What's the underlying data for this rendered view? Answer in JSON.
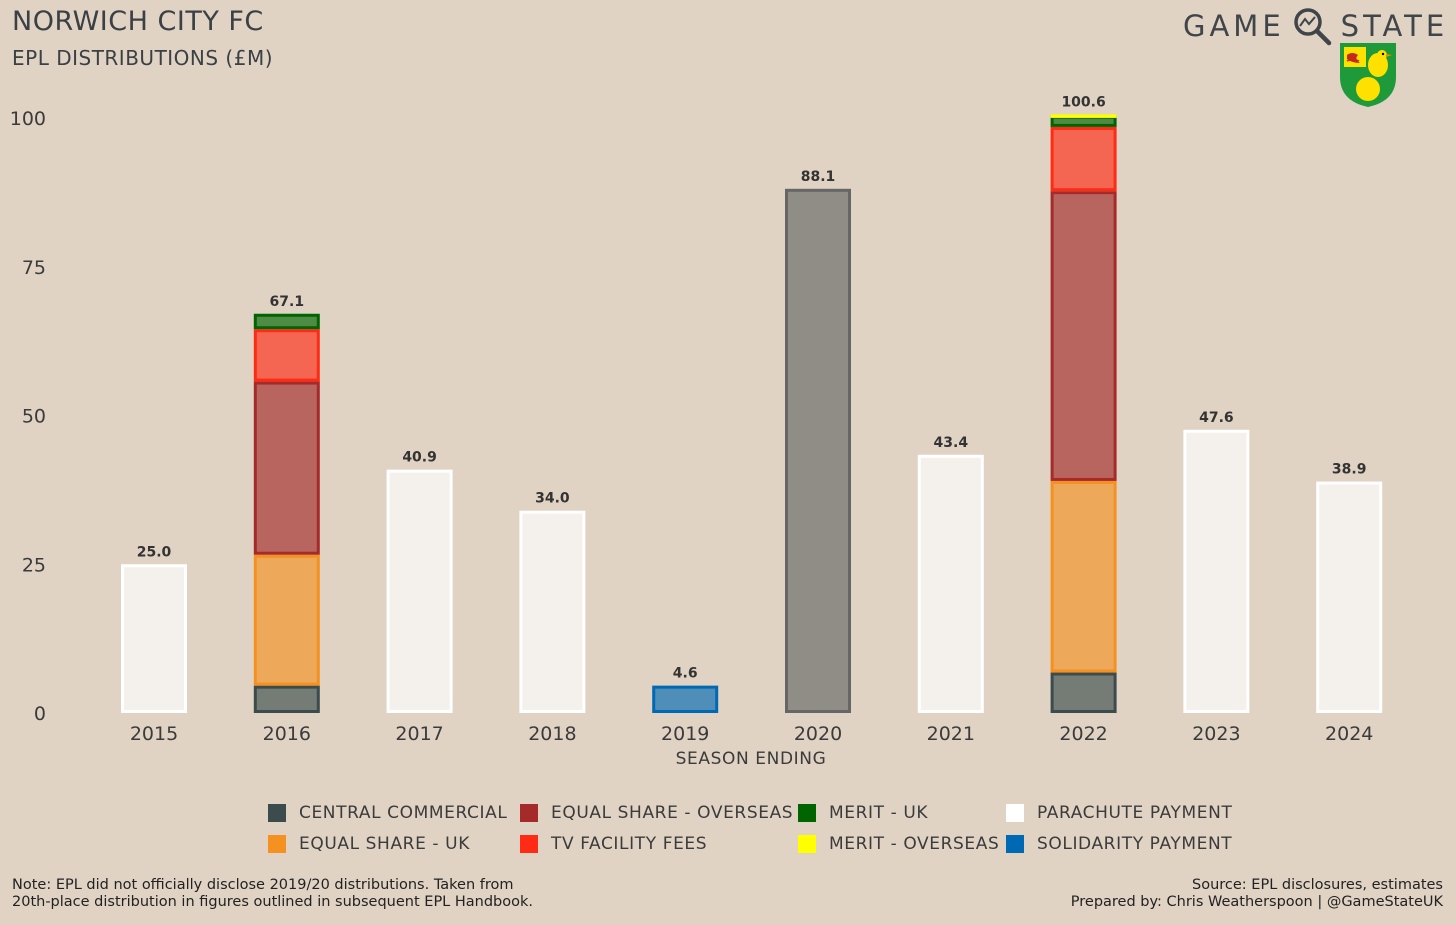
{
  "title": "NORWICH CITY FC",
  "subtitle": "EPL DISTRIBUTIONS (£M)",
  "brand": {
    "left_word": "GAME",
    "right_word": "STATE",
    "icon": "magnifier-icon",
    "crest": "norwich-canary-crest-icon"
  },
  "note": [
    "Note: EPL did not officially disclose 2019/20 distributions. Taken from",
    "20th-place distribution in figures outlined in subsequent EPL Handbook."
  ],
  "source": [
    "Source: EPL disclosures, estimates",
    "Prepared by: Chris Weatherspoon | @GameStateUK"
  ],
  "chart_data": {
    "type": "bar",
    "stacked": true,
    "xlabel": "SEASON ENDING",
    "ylabel": "",
    "ylim": [
      0,
      100
    ],
    "yticks": [
      0,
      25,
      50,
      75,
      100
    ],
    "grid": false,
    "legend_position": "bottom",
    "categories": [
      "2015",
      "2016",
      "2017",
      "2018",
      "2019",
      "2020",
      "2021",
      "2022",
      "2023",
      "2024"
    ],
    "totals": [
      "25.0",
      "67.1",
      "40.9",
      "34.0",
      "4.6",
      "88.1",
      "43.4",
      "100.6",
      "47.6",
      "38.9"
    ],
    "series": [
      {
        "name": "CENTRAL COMMERCIAL",
        "color": "#3c4b4b",
        "values": [
          0,
          4.6,
          0,
          0,
          0,
          0,
          0,
          6.8,
          0,
          0
        ]
      },
      {
        "name": "EQUAL SHARE - UK",
        "color": "#f59120",
        "values": [
          0,
          22.0,
          0,
          0,
          0,
          0,
          0,
          32.2,
          0,
          0
        ]
      },
      {
        "name": "EQUAL SHARE - OVERSEAS",
        "color": "#a52a2a",
        "values": [
          0,
          29.1,
          0,
          0,
          0,
          0,
          0,
          48.7,
          0,
          0
        ]
      },
      {
        "name": "TV FACILITY FEES",
        "color": "#ff2b14",
        "values": [
          0,
          8.8,
          0,
          0,
          0,
          0,
          0,
          10.8,
          0,
          0
        ]
      },
      {
        "name": "MERIT - UK",
        "color": "#006400",
        "values": [
          0,
          2.6,
          0,
          0,
          0,
          0,
          0,
          1.9,
          0,
          0
        ]
      },
      {
        "name": "MERIT - OVERSEAS",
        "color": "#ffff00",
        "values": [
          0,
          0,
          0,
          0,
          0,
          0,
          0,
          0.2,
          0,
          0
        ]
      },
      {
        "name": "PARACHUTE PAYMENT",
        "color": "#ffffff",
        "values": [
          25.0,
          0,
          40.9,
          34.0,
          0,
          0,
          43.4,
          0,
          47.6,
          38.9
        ]
      },
      {
        "name": "SOLIDARITY PAYMENT",
        "color": "#0069b4",
        "values": [
          0,
          0,
          0,
          0,
          4.6,
          0,
          0,
          0,
          0,
          0
        ]
      },
      {
        "name": "",
        "color": "#666666",
        "values": [
          0,
          0,
          0,
          0,
          0,
          88.1,
          0,
          0,
          0,
          0
        ]
      }
    ]
  },
  "legend_layout": [
    [
      "CENTRAL COMMERCIAL",
      "EQUAL SHARE - OVERSEAS",
      "MERIT - UK",
      "PARACHUTE PAYMENT"
    ],
    [
      "EQUAL SHARE - UK",
      "TV FACILITY FEES",
      "MERIT - OVERSEAS",
      "SOLIDARITY PAYMENT"
    ]
  ]
}
